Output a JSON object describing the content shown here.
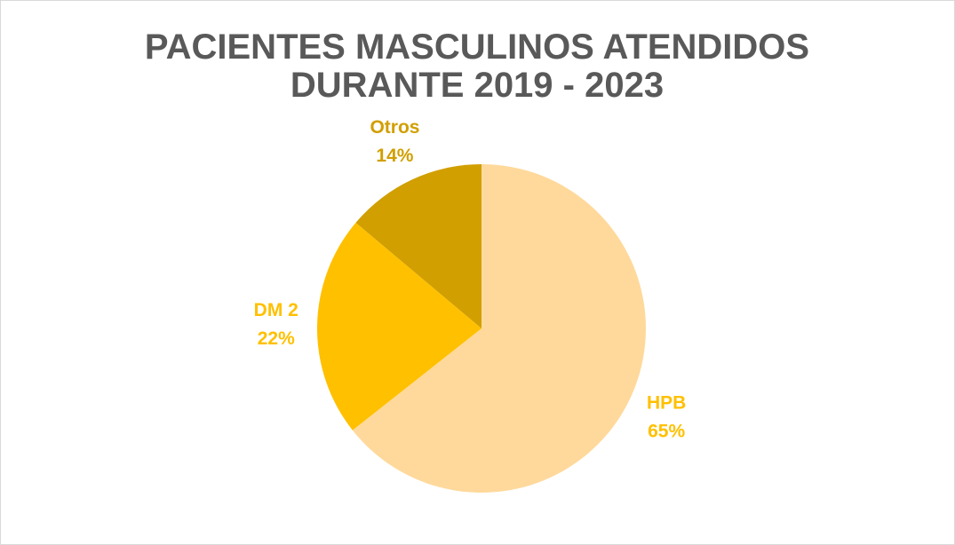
{
  "chart_data": {
    "type": "pie",
    "title": "PACIENTES MASCULINOS ATENDIDOS DURANTE 2019 - 2023",
    "categories": [
      "HPB",
      "DM 2",
      "Otros"
    ],
    "values": [
      65,
      22,
      14
    ],
    "value_labels": [
      "65%",
      "22%",
      "14%"
    ],
    "colors": [
      "#FFD99B",
      "#FFC000",
      "#D19F00"
    ],
    "label_colors": [
      "#FFC000",
      "#FFC000",
      "#D19F00"
    ]
  }
}
